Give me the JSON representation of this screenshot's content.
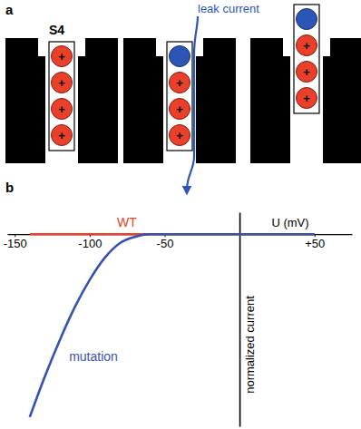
{
  "diagram": {
    "label": "a",
    "segment_label": "S4",
    "arrow_label": "leak current",
    "charge_label": "+",
    "states": [
      {
        "position": "down",
        "neutral": 0,
        "charges": 4,
        "leak": false
      },
      {
        "position": "down",
        "neutral": 1,
        "charges": 3,
        "leak": true
      },
      {
        "position": "up",
        "neutral": 1,
        "charges": 3,
        "leak": false
      }
    ]
  },
  "chart_data": {
    "type": "line",
    "panel_label": "b",
    "xlabel": "U (mV)",
    "ylabel": "normalized current",
    "x": [
      -140,
      -130,
      -120,
      -110,
      -100,
      -90,
      -80,
      -70,
      -60,
      -50,
      -40,
      -30,
      -20,
      -10,
      0,
      10,
      20,
      30,
      40,
      50
    ],
    "series": [
      {
        "name": "WT",
        "color": "#e8412c",
        "values": [
          0,
          0,
          0,
          0,
          0,
          0,
          0,
          0,
          0,
          0,
          0,
          0,
          0,
          0,
          0,
          0,
          0,
          0,
          0,
          0
        ]
      },
      {
        "name": "mutation",
        "color": "#3552b0",
        "values": [
          -1.0,
          -0.78,
          -0.58,
          -0.4,
          -0.25,
          -0.13,
          -0.05,
          -0.015,
          0,
          0,
          0,
          0,
          0,
          0,
          0,
          0,
          0,
          0,
          0,
          0
        ]
      }
    ],
    "xlim": [
      -155,
      75
    ],
    "ylim": [
      -1.05,
      0.12
    ],
    "xticks": [
      -150,
      -100,
      -50,
      {
        "value": 50,
        "label": "+50"
      }
    ],
    "tick_labels": "x"
  }
}
